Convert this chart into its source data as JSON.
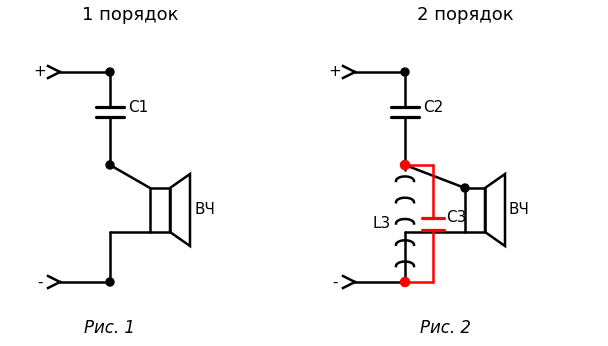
{
  "bg_color": "#ffffff",
  "line_color": "#000000",
  "red_color": "#ff0000",
  "dot_color": "#000000",
  "red_dot_color": "#ff0000",
  "title1": "1 порядок",
  "title2": "2 порядок",
  "label_plus1": "+",
  "label_minus1": "-",
  "label_plus2": "+",
  "label_minus2": "-",
  "label_c1": "С1",
  "label_c2": "С2",
  "label_c3": "С3",
  "label_l3": "L3",
  "label_vch1": "ВЧ",
  "label_vch2": "ВЧ",
  "label_fig1": "Рис. 1",
  "label_fig2": "Рис. 2",
  "fig_size": [
    6.08,
    3.46
  ],
  "dpi": 100
}
